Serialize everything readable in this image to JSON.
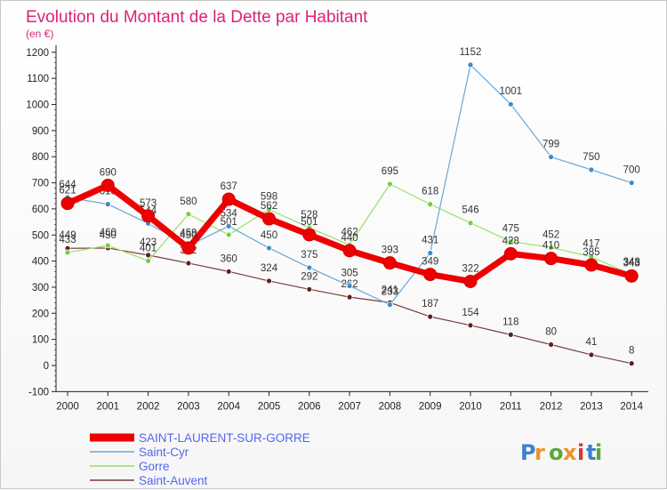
{
  "chart_data": {
    "type": "line",
    "title": "Evolution du Montant de la Dette par Habitant",
    "subtitle": "(en €)",
    "x": [
      "2000",
      "2001",
      "2002",
      "2003",
      "2004",
      "2005",
      "2006",
      "2007",
      "2008",
      "2009",
      "2010",
      "2011",
      "2012",
      "2013",
      "2014"
    ],
    "ylim": [
      -100,
      1200
    ],
    "yticks": [
      -100,
      0,
      100,
      200,
      300,
      400,
      500,
      600,
      700,
      800,
      900,
      1000,
      1100,
      1200
    ],
    "grid": false,
    "legend_position": "bottom-left",
    "series": [
      {
        "name": "SAINT-LAURENT-SUR-GORRE",
        "color": "#ee0000",
        "marker": "#cc0000",
        "width": 7,
        "values": [
          621,
          690,
          573,
          450,
          637,
          562,
          501,
          440,
          393,
          349,
          322,
          428,
          410,
          385,
          343
        ]
      },
      {
        "name": "Saint-Cyr",
        "color": "#6aa7d8",
        "marker": "#3f8bc4",
        "width": 1.2,
        "values": [
          644,
          618,
          544,
          459,
          534,
          450,
          375,
          305,
          233,
          431,
          1152,
          1001,
          799,
          750,
          700
        ]
      },
      {
        "name": "Gorre",
        "color": "#99e066",
        "marker": "#77cc44",
        "width": 1.2,
        "values": [
          433,
          460,
          401,
          580,
          501,
          598,
          528,
          462,
          695,
          618,
          546,
          475,
          452,
          417,
          348
        ]
      },
      {
        "name": "Saint-Auvent",
        "color": "#7a3b3b",
        "marker": "#5e2020",
        "width": 1.2,
        "values": [
          449,
          450,
          423,
          392,
          360,
          324,
          292,
          262,
          241,
          187,
          154,
          118,
          80,
          41,
          8
        ]
      }
    ]
  },
  "watermark": "Proxiti",
  "colors": {
    "title": "#dd2277",
    "axis": "#222222",
    "label": "#333333",
    "legend_text": "#5566ee"
  }
}
